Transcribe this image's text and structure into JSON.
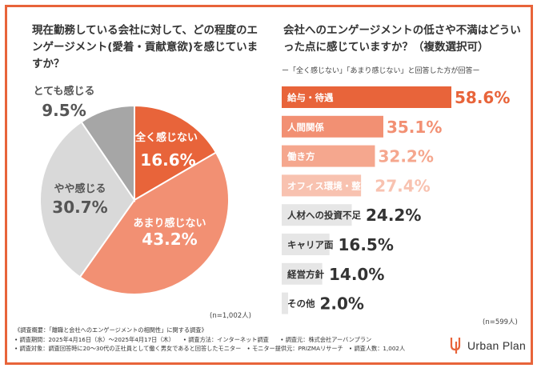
{
  "left_title": "現在勤務している会社に対して、どの程度のエンゲージメント(愛着・貢献意欲)を感じていますか？",
  "right_title": "会社へのエンゲージメントの低さや不満はどういった点に感じていますか？（複数選択可）",
  "right_subtitle": "ー「全く感じない」「あまり感じない」と回答した方が回答ー",
  "left_n": "(n=1,002人)",
  "right_n": "(n=599人)",
  "chart_data": [
    {
      "type": "pie",
      "title": "現在勤務している会社に対して、どの程度のエンゲージメント(愛着・貢献意欲)を感じていますか？",
      "categories": [
        "全く感じない",
        "あまり感じない",
        "やや感じる",
        "とても感じる"
      ],
      "values": [
        16.6,
        43.2,
        30.7,
        9.5
      ],
      "value_labels": [
        "16.6%",
        "43.2%",
        "30.7%",
        "9.5%"
      ],
      "colors": [
        "#e8643a",
        "#f29073",
        "#d9d9d9",
        "#a6a6a6"
      ],
      "label_colors": [
        "#ffffff",
        "#ffffff",
        "#555555",
        "#555555"
      ]
    },
    {
      "type": "bar",
      "orientation": "horizontal",
      "title": "会社へのエンゲージメントの低さや不満はどういった点に感じていますか？（複数選択可）",
      "categories": [
        "給与・待遇",
        "人間関係",
        "働き方",
        "オフィス環境・整備",
        "人材への投資不足",
        "キャリア面",
        "経営方針",
        "その他"
      ],
      "values": [
        58.6,
        35.1,
        32.2,
        27.4,
        24.2,
        16.5,
        14.0,
        2.0
      ],
      "value_labels": [
        "58.6%",
        "35.1%",
        "32.2%",
        "27.4%",
        "24.2%",
        "16.5%",
        "14.0%",
        "2.0%"
      ],
      "xlim": [
        0,
        58.6
      ],
      "colors": [
        "#e8643a",
        "#f29073",
        "#f5a78e",
        "#f8c2b0",
        "#e6e6e6",
        "#e6e6e6",
        "#e6e6e6",
        "#e6e6e6"
      ],
      "label_colors": [
        "#ffffff",
        "#ffffff",
        "#ffffff",
        "#ffffff",
        "#333333",
        "#333333",
        "#333333",
        "#333333"
      ],
      "value_colors": [
        "#e8643a",
        "#f29073",
        "#f5a78e",
        "#f8c2b0",
        "#333333",
        "#333333",
        "#333333",
        "#333333"
      ]
    }
  ],
  "footer": [
    "《調査概要：「離職と会社へのエンゲージメントの相関性」に関する調査》",
    "• 調査期間：2025年4月16日（水）～2025年4月17日（木）　　• 調査方法：インターネット調査　　• 調査元：株式会社アーバンプラン",
    "• 調査対象：調査回答時に20～30代の正社員として働く男女であると回答したモニター　• モニター提供元：PRIZMAリサーチ　• 調査人数：1,002人"
  ],
  "logo_text": "Urban Plan"
}
